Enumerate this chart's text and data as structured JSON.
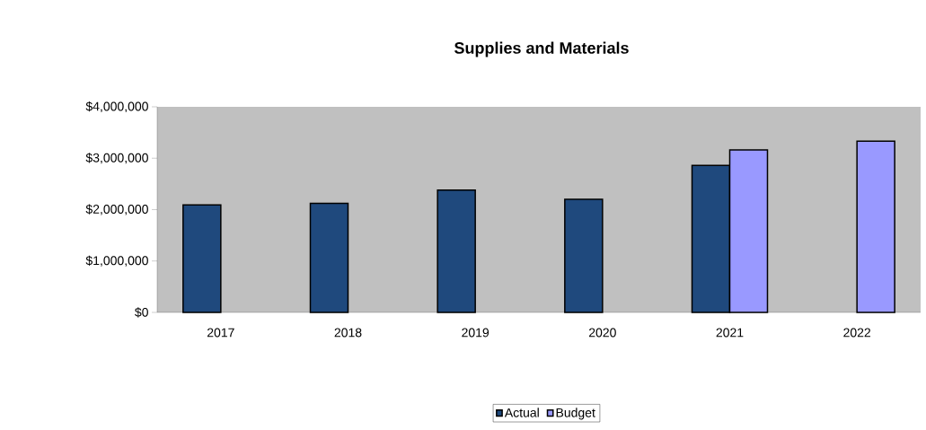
{
  "chart_data": {
    "type": "bar",
    "title": "Supplies and Materials",
    "categories": [
      "2017",
      "2018",
      "2019",
      "2020",
      "2021",
      "2022"
    ],
    "series": [
      {
        "name": "Actual",
        "color": "#1f497d",
        "values": [
          2090000,
          2120000,
          2380000,
          2200000,
          2860000,
          null
        ]
      },
      {
        "name": "Budget",
        "color": "#9999ff",
        "values": [
          null,
          null,
          null,
          null,
          3160000,
          3330000
        ]
      }
    ],
    "ylim": [
      0,
      4000000
    ],
    "yticks": [
      {
        "value": 0,
        "label": "$0"
      },
      {
        "value": 1000000,
        "label": "$1,000,000"
      },
      {
        "value": 2000000,
        "label": "$2,000,000"
      },
      {
        "value": 3000000,
        "label": "$3,000,000"
      },
      {
        "value": 4000000,
        "label": "$4,000,000"
      }
    ],
    "grid": false,
    "legend": "bottom"
  }
}
